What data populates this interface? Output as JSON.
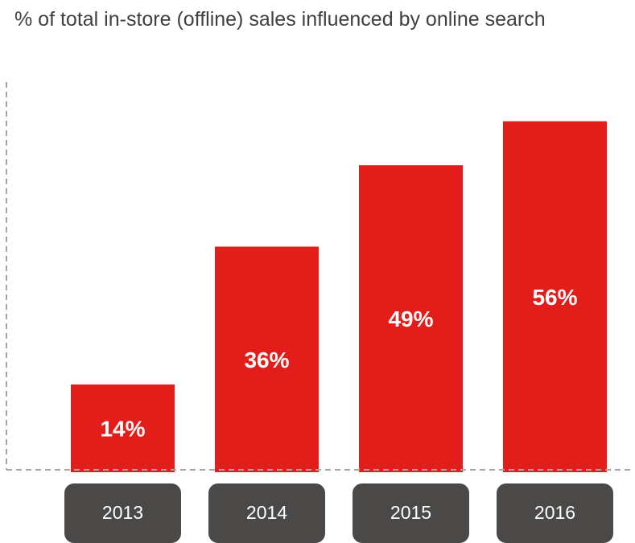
{
  "chart_data": {
    "type": "bar",
    "title": "% of total in-store (offline) sales influenced by online search",
    "categories": [
      "2013",
      "2014",
      "2015",
      "2016"
    ],
    "values": [
      14,
      36,
      49,
      56
    ],
    "value_labels": [
      "14%",
      "36%",
      "49%",
      "56%"
    ],
    "unit": "%",
    "ylim": [
      0,
      62
    ],
    "grid": false,
    "legend": "none",
    "colors": {
      "bar": "#E31E1A",
      "bar_label": "#FFFFFF",
      "category_box": "#4A4948",
      "category_text": "#FFFFFF",
      "axis": "#A6A6A6",
      "title": "#404040"
    }
  }
}
